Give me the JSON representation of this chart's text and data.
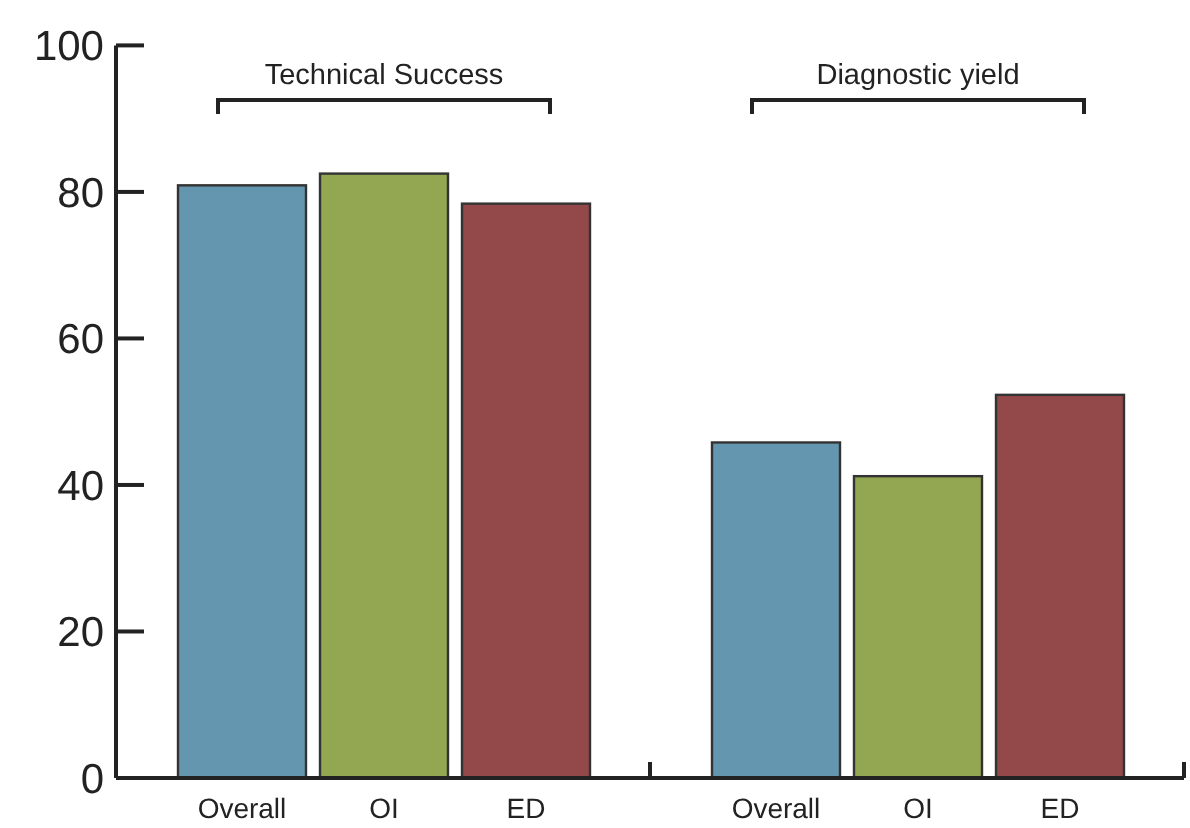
{
  "chart_data": {
    "type": "bar",
    "categories": [
      "Overall",
      "OI",
      "ED",
      "Overall",
      "OI",
      "ED"
    ],
    "values": [
      80.9,
      82.5,
      78.4,
      45.8,
      41.2,
      52.3
    ],
    "colors": [
      "#6596b0",
      "#93a652",
      "#93484a",
      "#6596b0",
      "#93a652",
      "#93484a"
    ],
    "ylim": [
      0,
      100
    ],
    "yticks": [
      0,
      20,
      40,
      60,
      80,
      100
    ],
    "annotations": [
      "Technical Success",
      "Diagnostic yield"
    ]
  }
}
